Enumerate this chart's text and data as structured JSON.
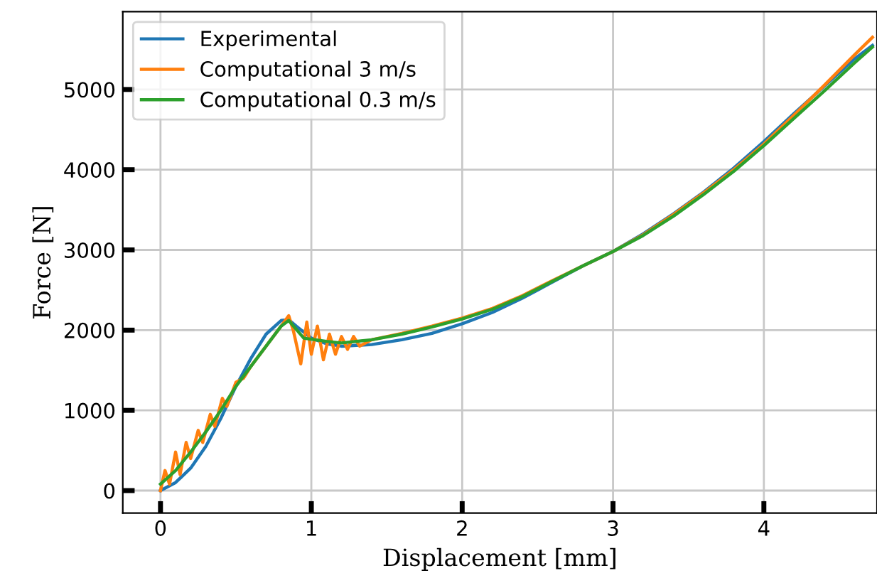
{
  "chart_data": {
    "type": "line",
    "xlabel": "Displacement [mm]",
    "ylabel": "Force [N]",
    "xlim": [
      -0.25,
      4.75
    ],
    "ylim": [
      -280,
      5970
    ],
    "xticks": [
      0,
      1,
      2,
      3,
      4
    ],
    "yticks": [
      0,
      1000,
      2000,
      3000,
      4000,
      5000
    ],
    "grid": true,
    "legend": "top left",
    "marker": "none",
    "line_style": "solid",
    "series": [
      {
        "name": "Experimental",
        "color": "#1f77b4",
        "x": [
          0,
          0.1,
          0.2,
          0.3,
          0.4,
          0.5,
          0.6,
          0.7,
          0.8,
          0.85,
          0.9,
          1.0,
          1.1,
          1.2,
          1.4,
          1.6,
          1.8,
          2.0,
          2.2,
          2.4,
          2.6,
          2.8,
          3.0,
          3.2,
          3.4,
          3.6,
          3.8,
          4.0,
          4.2,
          4.4,
          4.6,
          4.72
        ],
        "values": [
          0,
          100,
          280,
          550,
          900,
          1300,
          1650,
          1950,
          2120,
          2130,
          2050,
          1900,
          1830,
          1800,
          1820,
          1880,
          1960,
          2080,
          2220,
          2400,
          2600,
          2800,
          2980,
          3200,
          3450,
          3720,
          4020,
          4350,
          4700,
          5040,
          5380,
          5550
        ]
      },
      {
        "name": "Computational 3 m/s",
        "color": "#ff7f0e",
        "x": [
          0,
          0.03,
          0.06,
          0.1,
          0.13,
          0.17,
          0.2,
          0.25,
          0.28,
          0.33,
          0.36,
          0.41,
          0.44,
          0.5,
          0.55,
          0.6,
          0.7,
          0.8,
          0.85,
          0.88,
          0.93,
          0.97,
          1.0,
          1.04,
          1.08,
          1.12,
          1.16,
          1.2,
          1.24,
          1.28,
          1.32,
          1.4,
          1.6,
          1.8,
          2.0,
          2.2,
          2.4,
          2.6,
          2.8,
          3.0,
          3.2,
          3.4,
          3.6,
          3.8,
          4.0,
          4.2,
          4.4,
          4.6,
          4.72
        ],
        "values": [
          0,
          250,
          80,
          480,
          200,
          600,
          400,
          750,
          600,
          950,
          800,
          1150,
          1050,
          1350,
          1400,
          1550,
          1800,
          2050,
          2180,
          2000,
          1580,
          2100,
          1700,
          2050,
          1630,
          1950,
          1700,
          1920,
          1760,
          1920,
          1800,
          1880,
          1960,
          2050,
          2150,
          2270,
          2430,
          2620,
          2800,
          2980,
          3190,
          3440,
          3710,
          4000,
          4320,
          4680,
          5050,
          5430,
          5650
        ]
      },
      {
        "name": "Computational 0.3 m/s",
        "color": "#2ca02c",
        "x": [
          0,
          0.1,
          0.2,
          0.3,
          0.4,
          0.5,
          0.6,
          0.7,
          0.8,
          0.85,
          0.95,
          1.1,
          1.2,
          1.4,
          1.6,
          1.8,
          2.0,
          2.2,
          2.4,
          2.6,
          2.8,
          3.0,
          3.2,
          3.4,
          3.6,
          3.8,
          4.0,
          4.2,
          4.4,
          4.6,
          4.72
        ],
        "values": [
          80,
          250,
          480,
          730,
          1000,
          1300,
          1550,
          1800,
          2050,
          2120,
          1900,
          1860,
          1840,
          1880,
          1950,
          2040,
          2140,
          2260,
          2420,
          2610,
          2800,
          2980,
          3180,
          3420,
          3690,
          3980,
          4300,
          4640,
          4980,
          5330,
          5530
        ]
      }
    ]
  }
}
